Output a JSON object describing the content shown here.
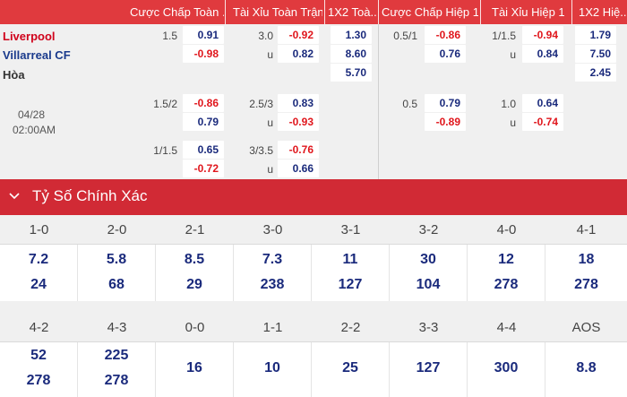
{
  "columns": {
    "hdp_ft": "Cược Chấp Toàn ...",
    "ou_ft": "Tài Xỉu Toàn Trận",
    "x12_ft": "1X2 Toà...",
    "hdp_h1": "Cược Chấp Hiệp 1",
    "ou_h1": "Tài Xỉu Hiệp 1",
    "x12_h1": "1X2 Hiệ..."
  },
  "match": {
    "home": "Liverpool",
    "away": "Villarreal CF",
    "draw": "Hòa",
    "date": "04/28",
    "time": "02:00AM"
  },
  "odds_rows": [
    {
      "hdp_ft": {
        "line": "1.5",
        "top": "0.91",
        "bottom": "-0.98"
      },
      "ou_ft": {
        "line": "3.0",
        "top": "-0.92",
        "bottom_label": "u",
        "bottom": "0.82"
      },
      "x12_ft": {
        "home": "1.30",
        "away": "8.60",
        "draw": "5.70"
      },
      "hdp_h1": {
        "line": "0.5/1",
        "top": "-0.86",
        "bottom": "0.76"
      },
      "ou_h1": {
        "line": "1/1.5",
        "top": "-0.94",
        "bottom_label": "u",
        "bottom": "0.84"
      },
      "x12_h1": {
        "home": "1.79",
        "away": "7.50",
        "draw": "2.45"
      }
    },
    {
      "hdp_ft": {
        "line": "1.5/2",
        "top": "-0.86",
        "bottom": "0.79"
      },
      "ou_ft": {
        "line": "2.5/3",
        "top": "0.83",
        "bottom_label": "u",
        "bottom": "-0.93"
      },
      "hdp_h1": {
        "line": "0.5",
        "top": "0.79",
        "bottom": "-0.89"
      },
      "ou_h1": {
        "line": "1.0",
        "top": "0.64",
        "bottom_label": "u",
        "bottom": "-0.74"
      }
    },
    {
      "hdp_ft": {
        "line": "1/1.5",
        "top": "0.65",
        "bottom": "-0.72"
      },
      "ou_ft": {
        "line": "3/3.5",
        "top": "-0.76",
        "bottom_label": "u",
        "bottom": "0.66"
      }
    }
  ],
  "section": {
    "title": "Tỷ Số Chính Xác",
    "icon": "chevron-down-icon"
  },
  "correct_score": {
    "row1": [
      {
        "score": "1-0",
        "home": "7.2",
        "away": "24"
      },
      {
        "score": "2-0",
        "home": "5.8",
        "away": "68"
      },
      {
        "score": "2-1",
        "home": "8.5",
        "away": "29"
      },
      {
        "score": "3-0",
        "home": "7.3",
        "away": "238"
      },
      {
        "score": "3-1",
        "home": "11",
        "away": "127"
      },
      {
        "score": "3-2",
        "home": "30",
        "away": "104"
      },
      {
        "score": "4-0",
        "home": "12",
        "away": "278"
      },
      {
        "score": "4-1",
        "home": "18",
        "away": "278"
      }
    ],
    "row2": [
      {
        "score": "4-2",
        "home": "52",
        "away": "278"
      },
      {
        "score": "4-3",
        "home": "225",
        "away": "278"
      },
      {
        "score": "0-0",
        "value": "16"
      },
      {
        "score": "1-1",
        "value": "10"
      },
      {
        "score": "2-2",
        "value": "25"
      },
      {
        "score": "3-3",
        "value": "127"
      },
      {
        "score": "4-4",
        "value": "300"
      },
      {
        "score": "AOS",
        "value": "8.8"
      }
    ]
  },
  "colors": {
    "header_red": "#e03a3e",
    "section_red": "#d12a35",
    "positive_odds": "#1a2a7c",
    "negative_odds": "#e0161c",
    "home_team": "#d0021b",
    "away_team": "#1a3a8c"
  }
}
